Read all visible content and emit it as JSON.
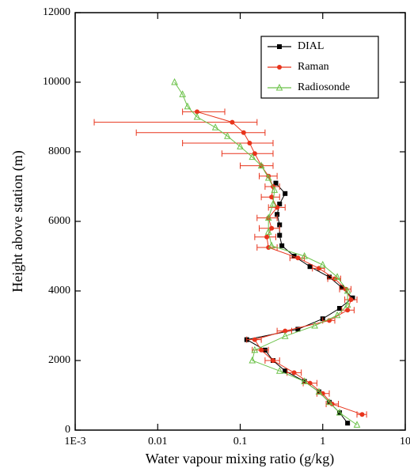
{
  "chart_data": {
    "type": "line",
    "xlabel": "Water vapour mixing ratio (g/kg)",
    "ylabel": "Height above station (m)",
    "xscale": "log",
    "xlim": [
      0.001,
      10
    ],
    "xticks": [
      {
        "value": 0.001,
        "label": "1E-3"
      },
      0.01,
      0.1,
      1,
      10
    ],
    "ylim": [
      0,
      12000
    ],
    "yticks": [
      0,
      2000,
      4000,
      6000,
      8000,
      10000,
      12000
    ],
    "legend": "upper right",
    "series": [
      {
        "name": "DIAL",
        "color": "#000000",
        "marker": "square",
        "x": [
          0.27,
          0.35,
          0.3,
          0.28,
          0.3,
          0.3,
          0.32,
          0.45,
          0.7,
          1.2,
          1.7,
          2.3,
          1.6,
          1.0,
          0.5,
          0.12,
          0.2,
          0.25,
          0.35,
          0.6,
          0.9,
          1.2,
          1.6,
          2.0
        ],
        "y": [
          7100,
          6800,
          6500,
          6200,
          5900,
          5600,
          5300,
          5000,
          4700,
          4400,
          4100,
          3800,
          3500,
          3200,
          2900,
          2600,
          2300,
          2000,
          1700,
          1400,
          1100,
          800,
          500,
          200
        ]
      },
      {
        "name": "Raman",
        "color": "#e8341c",
        "marker": "circle",
        "x": [
          0.03,
          0.08,
          0.11,
          0.13,
          0.15,
          0.18,
          0.22,
          0.25,
          0.24,
          0.28,
          0.22,
          0.24,
          0.21,
          0.22,
          0.5,
          0.9,
          1.4,
          1.9,
          2.2,
          2.0,
          1.2,
          0.35,
          0.15,
          0.18,
          0.25,
          0.45,
          0.7,
          1.0,
          1.3,
          3.0
        ],
        "y": [
          9150,
          8850,
          8550,
          8250,
          7950,
          7600,
          7300,
          7000,
          6700,
          6400,
          6100,
          5800,
          5550,
          5250,
          4950,
          4650,
          4350,
          4050,
          3750,
          3450,
          3150,
          2850,
          2600,
          2300,
          2000,
          1650,
          1350,
          1050,
          750,
          450
        ],
        "xerr_low": [
          0.02,
          0.0017,
          0.0055,
          0.02,
          0.06,
          0.1,
          0.17,
          0.2,
          0.18,
          0.22,
          0.16,
          0.17,
          0.15,
          0.16,
          0.4,
          0.75,
          1.15,
          1.6,
          1.85,
          1.7,
          1.0,
          0.28,
          0.12,
          0.14,
          0.2,
          0.37,
          0.58,
          0.85,
          1.1,
          2.6
        ],
        "xerr_high": [
          0.065,
          0.16,
          0.2,
          0.25,
          0.25,
          0.25,
          0.28,
          0.3,
          0.3,
          0.35,
          0.28,
          0.3,
          0.27,
          0.28,
          0.6,
          1.05,
          1.65,
          2.2,
          2.6,
          2.4,
          1.4,
          0.42,
          0.18,
          0.22,
          0.3,
          0.55,
          0.85,
          1.2,
          1.55,
          3.4
        ]
      },
      {
        "name": "Radiosonde",
        "color": "#6cc24a",
        "marker": "triangle",
        "x": [
          0.016,
          0.02,
          0.023,
          0.03,
          0.05,
          0.07,
          0.1,
          0.14,
          0.18,
          0.22,
          0.26,
          0.25,
          0.22,
          0.22,
          0.24,
          0.6,
          1.0,
          1.5,
          2.0,
          2.0,
          1.5,
          0.8,
          0.35,
          0.15,
          0.14,
          0.3,
          0.6,
          0.9,
          1.2,
          1.6,
          2.6
        ],
        "y": [
          10000,
          9650,
          9300,
          9000,
          8700,
          8450,
          8150,
          7850,
          7600,
          7250,
          6900,
          6500,
          6100,
          5700,
          5300,
          5000,
          4750,
          4400,
          4000,
          3600,
          3300,
          3000,
          2700,
          2300,
          2000,
          1700,
          1400,
          1100,
          800,
          500,
          150
        ]
      }
    ]
  }
}
